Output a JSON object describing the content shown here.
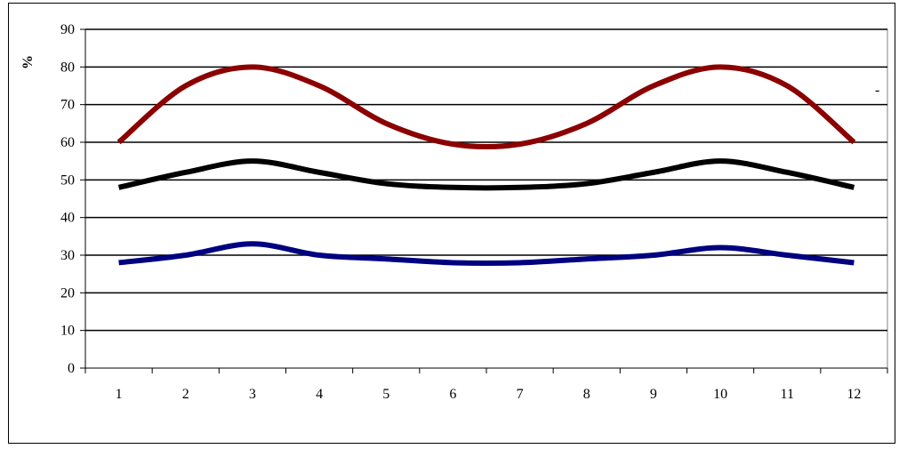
{
  "chart_data": {
    "type": "line",
    "title": "",
    "xlabel": "",
    "ylabel": "%",
    "ylim": [
      0,
      90
    ],
    "yticks": [
      0,
      10,
      20,
      30,
      40,
      50,
      60,
      70,
      80,
      90
    ],
    "categories": [
      "1",
      "2",
      "3",
      "4",
      "5",
      "6",
      "7",
      "8",
      "9",
      "10",
      "11",
      "12"
    ],
    "grid": true,
    "legend": "none",
    "annotation": "-",
    "series": [
      {
        "color": "#8b0000",
        "values": [
          60,
          75,
          80,
          75,
          65,
          59.5,
          59.5,
          65,
          75,
          80,
          75,
          60
        ]
      },
      {
        "color": "#000000",
        "values": [
          48,
          52,
          55,
          52,
          49,
          48,
          48,
          49,
          52,
          55,
          52,
          48
        ]
      },
      {
        "color": "#000080",
        "values": [
          28,
          30,
          33,
          30,
          29,
          28,
          28,
          29,
          30,
          32,
          30,
          28
        ]
      }
    ]
  }
}
